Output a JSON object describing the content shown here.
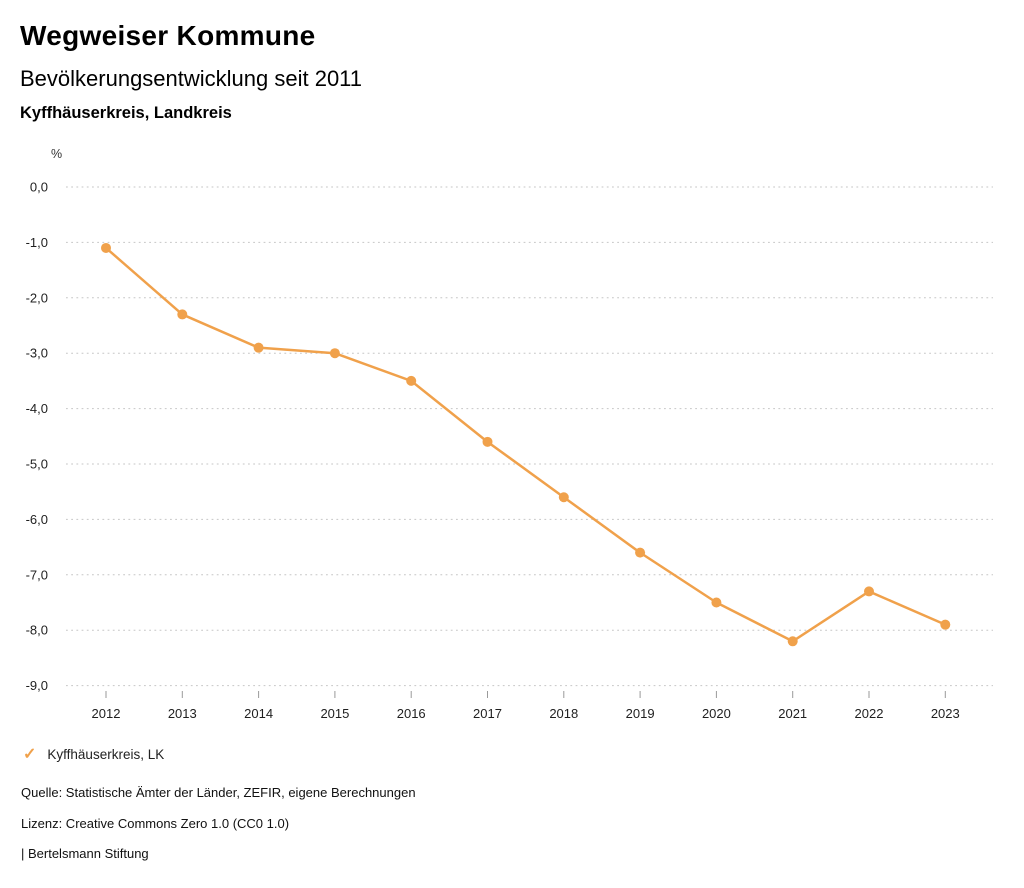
{
  "header": {
    "title": "Wegweiser Kommune",
    "subtitle": "Bevölkerungsentwicklung seit 2011",
    "region": "Kyffhäuserkreis, Landkreis"
  },
  "chart_data": {
    "type": "line",
    "title": "Bevölkerungsentwicklung seit 2011",
    "region": "Kyffhäuserkreis, Landkreis",
    "unit": "%",
    "categories": [
      "2012",
      "2013",
      "2014",
      "2015",
      "2016",
      "2017",
      "2018",
      "2019",
      "2020",
      "2021",
      "2022",
      "2023"
    ],
    "series": [
      {
        "name": "Kyffhäuserkreis, LK",
        "values": [
          -1.1,
          -2.3,
          -2.9,
          -3.0,
          -3.5,
          -4.6,
          -5.6,
          -6.6,
          -7.5,
          -8.2,
          -7.3,
          -7.9
        ],
        "color": "#F0A14B"
      }
    ],
    "ylim": [
      -9.0,
      0.0
    ],
    "y_axis": {
      "tick_values": [
        0.0,
        -1.0,
        -2.0,
        -3.0,
        -4.0,
        -5.0,
        -6.0,
        -7.0,
        -8.0,
        -9.0
      ],
      "tick_labels": [
        "0,0",
        "-1,0",
        "-2,0",
        "-3,0",
        "-4,0",
        "-5,0",
        "-6,0",
        "-7,0",
        "-8,0",
        "-9,0"
      ]
    },
    "grid": "horizontal-dotted",
    "legend_position": "bottom-left",
    "marker": "circle"
  },
  "legend": {
    "marker": "✓",
    "label": "Kyffhäuserkreis, LK",
    "color": "#F0A14B"
  },
  "footer": {
    "source": "Quelle: Statistische Ämter der Länder, ZEFIR, eigene Berechnungen",
    "license": "Lizenz: Creative Commons Zero 1.0 (CC0 1.0)",
    "attribution": "| Bertelsmann Stiftung"
  }
}
